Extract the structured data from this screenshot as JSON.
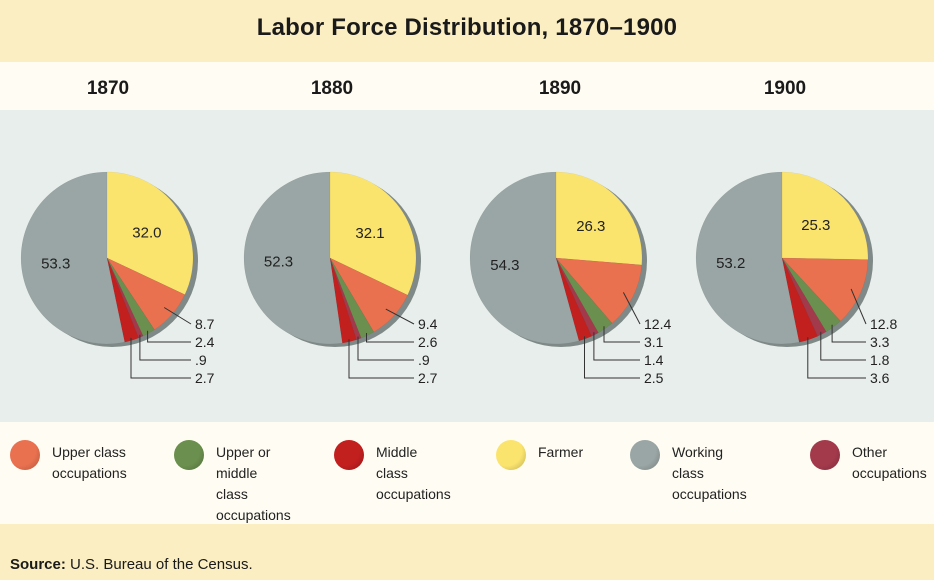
{
  "title": "Labor Force Distribution, 1870–1900",
  "chart_data": [
    {
      "type": "pie",
      "title": "1870",
      "slices": [
        {
          "name": "Farmer",
          "value": 32.0,
          "label": "32.0"
        },
        {
          "name": "Upper class occupations",
          "value": 8.7,
          "label": "8.7"
        },
        {
          "name": "Upper or middle class occupations",
          "value": 2.4,
          "label": "2.4"
        },
        {
          "name": "Other occupations",
          "value": 0.9,
          "label": ".9"
        },
        {
          "name": "Middle class occupations",
          "value": 2.7,
          "label": "2.7"
        },
        {
          "name": "Working class occupations",
          "value": 53.3,
          "label": "53.3"
        }
      ]
    },
    {
      "type": "pie",
      "title": "1880",
      "slices": [
        {
          "name": "Farmer",
          "value": 32.1,
          "label": "32.1"
        },
        {
          "name": "Upper class occupations",
          "value": 9.4,
          "label": "9.4"
        },
        {
          "name": "Upper or middle class occupations",
          "value": 2.6,
          "label": "2.6"
        },
        {
          "name": "Other occupations",
          "value": 0.9,
          "label": ".9"
        },
        {
          "name": "Middle class occupations",
          "value": 2.7,
          "label": "2.7"
        },
        {
          "name": "Working class occupations",
          "value": 52.3,
          "label": "52.3"
        }
      ]
    },
    {
      "type": "pie",
      "title": "1890",
      "slices": [
        {
          "name": "Farmer",
          "value": 26.3,
          "label": "26.3"
        },
        {
          "name": "Upper class occupations",
          "value": 12.4,
          "label": "12.4"
        },
        {
          "name": "Upper or middle class occupations",
          "value": 3.1,
          "label": "3.1"
        },
        {
          "name": "Other occupations",
          "value": 1.4,
          "label": "1.4"
        },
        {
          "name": "Middle class occupations",
          "value": 2.5,
          "label": "2.5"
        },
        {
          "name": "Working class occupations",
          "value": 54.3,
          "label": "54.3"
        }
      ]
    },
    {
      "type": "pie",
      "title": "1900",
      "slices": [
        {
          "name": "Farmer",
          "value": 25.3,
          "label": "25.3"
        },
        {
          "name": "Upper class occupations",
          "value": 12.8,
          "label": "12.8"
        },
        {
          "name": "Upper or middle class occupations",
          "value": 3.3,
          "label": "3.3"
        },
        {
          "name": "Other occupations",
          "value": 1.8,
          "label": "1.8"
        },
        {
          "name": "Middle class occupations",
          "value": 3.6,
          "label": "3.6"
        },
        {
          "name": "Working class occupations",
          "value": 53.2,
          "label": "53.2"
        }
      ]
    }
  ],
  "legend": [
    {
      "key": "upper",
      "label": "Upper class\noccupations",
      "color": "#e9714f"
    },
    {
      "key": "uppermiddle",
      "label": "Upper or\nmiddle class\noccupations",
      "color": "#6b8f4e"
    },
    {
      "key": "middle",
      "label": "Middle class\noccupations",
      "color": "#c21f1f"
    },
    {
      "key": "farmer",
      "label": "Farmer",
      "color": "#fbe46e"
    },
    {
      "key": "working",
      "label": "Working class\noccupations",
      "color": "#9aa6a5"
    },
    {
      "key": "other",
      "label": "Other\noccupations",
      "color": "#a33a4c"
    }
  ],
  "colors": {
    "Farmer": "#fbe46e",
    "Upper class occupations": "#e9714f",
    "Upper or middle class occupations": "#6b8f4e",
    "Other occupations": "#a33a4c",
    "Middle class occupations": "#c21f1f",
    "Working class occupations": "#9aa6a5"
  },
  "source": {
    "label": "Source:",
    "text": "U.S. Bureau of the Census."
  }
}
